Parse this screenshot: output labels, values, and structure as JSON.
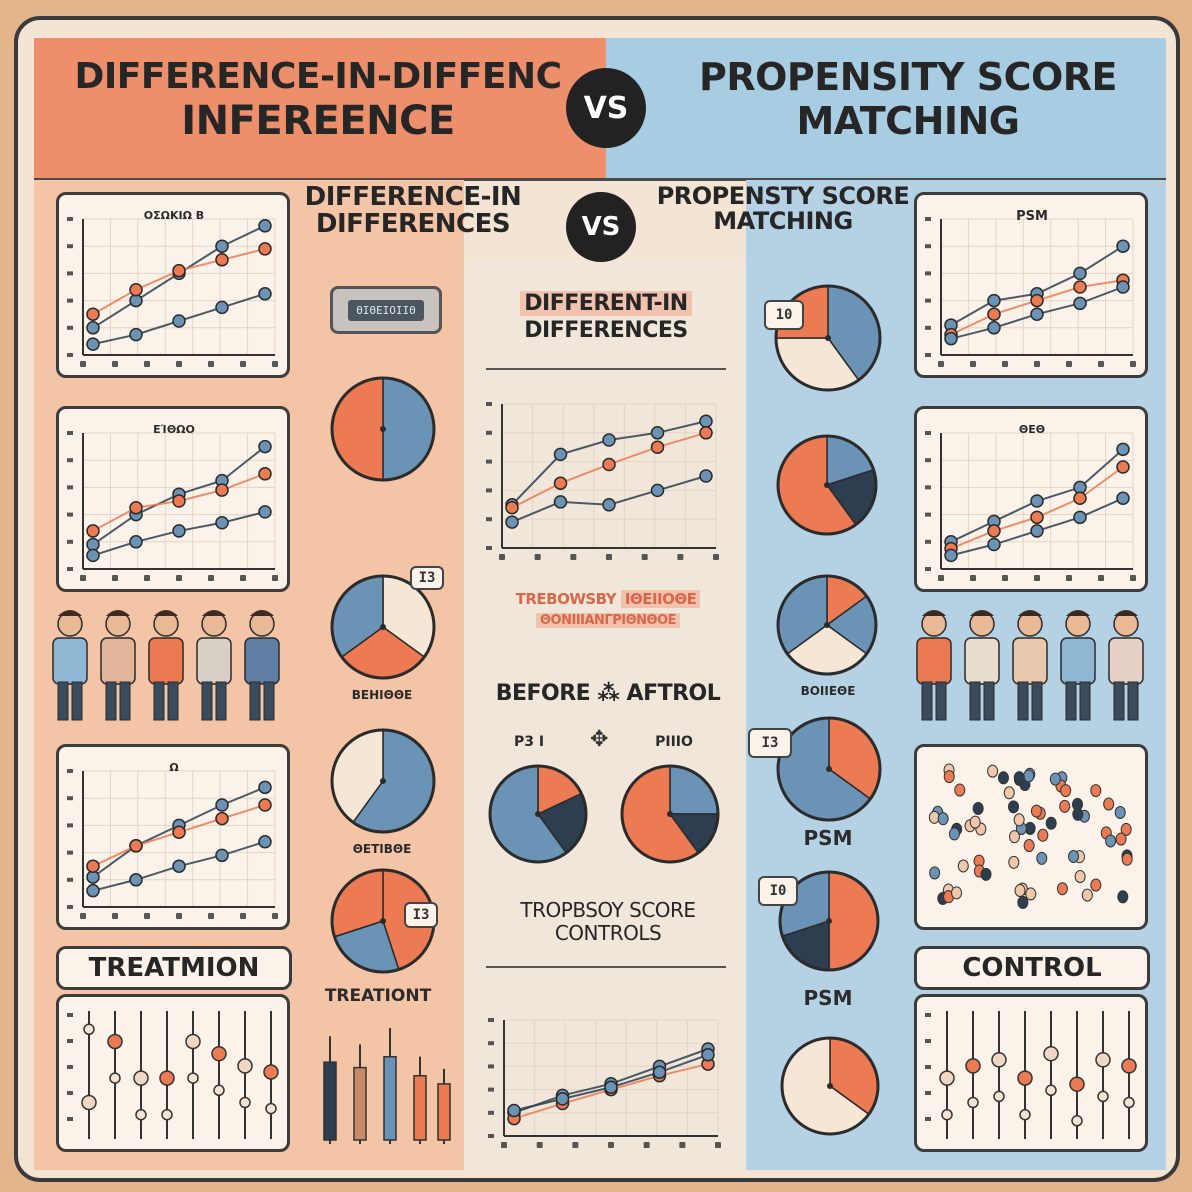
{
  "header": {
    "left_title_line1": "DIFFERENCE-IN-DIFFENC",
    "left_title_line2": "INFEREENCE",
    "vs": "VS",
    "right_title_line1": "PROPENSITY SCORE",
    "right_title_line2": "MATCHING"
  },
  "subheader": {
    "left_line1": "DIFFERENCE-IN",
    "left_line2": "DIFFERENCES",
    "vs": "VS",
    "right_line1": "PROPENSTY SCORE",
    "right_line2": "MATCHING"
  },
  "left_panel": {
    "chart1_title": "ΟΣΩΚΙΩ Β",
    "chart2_title": "ΕΊΘΩΟ",
    "chart3_title": "Ω",
    "treatment_label": "TREATMION",
    "pie_caption_1": "ΒΕΗΙΘΘΕ",
    "pie_caption_2": "ΘΕΤΙΒΘΕ",
    "pie_badge": "Ι3",
    "device_label": "ΘΙΘΕΙΟΙΙΘ"
  },
  "middle_panel": {
    "title_line1": "DIFFERENT-IN",
    "title_line2": "DIFFERENCES",
    "highlight_line1": "TREBOWSBY",
    "highlight_line1b": "ΙΘΕΙΙΟΘΕ",
    "highlight_line2": "ΘΟΝΙΙΙΑΝΓΡΙΘΝΘΟΕ",
    "before_after": "BEFORE ⁂ AFTROL",
    "pie_left_label": "Ρ3 Ι",
    "pie_right_label": "ΡΙΙΙΟ",
    "score_line1": "TROPBSOY SCORE",
    "score_line2": "CONTROLS",
    "treatment_label": "TREATIONT"
  },
  "right_panel": {
    "chart1_title": "PSM",
    "chart2_title": "ΘΕΘ",
    "pie_caption": "ΒΟΙΙΕΘΕ",
    "psm_label_1": "PSM",
    "psm_label_2": "PSM",
    "control_label": "CONTROL",
    "pie_badge_1": "10",
    "pie_badge_2": "Ι0",
    "pie_badge_3": "Ι3"
  },
  "colors": {
    "orange": "#ec7a52",
    "blue": "#6b93b6",
    "dark": "#2d3e50",
    "header_left": "#ee8f6c",
    "header_right": "#a8cde3"
  }
}
